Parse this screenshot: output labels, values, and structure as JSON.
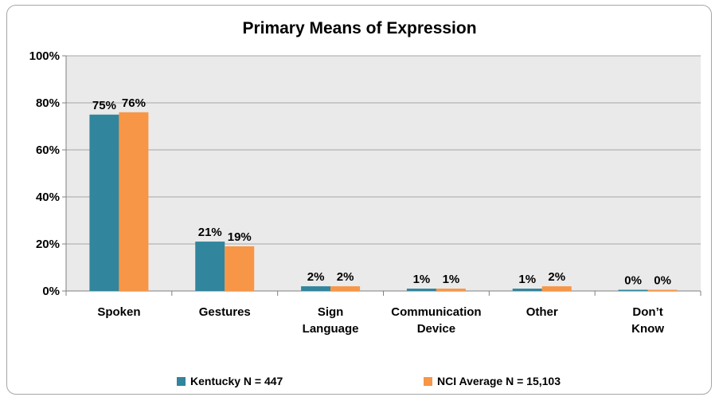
{
  "chart_data": {
    "type": "bar",
    "title": "Primary Means of Expression",
    "categories": [
      [
        "Spoken"
      ],
      [
        "Gestures"
      ],
      [
        "Sign",
        "Language"
      ],
      [
        "Communication",
        "Device"
      ],
      [
        "Other"
      ],
      [
        "Don’t",
        "Know"
      ]
    ],
    "series": [
      {
        "name": "Kentucky N = 447",
        "color": "#31859c",
        "values": [
          75,
          21,
          2,
          1,
          1,
          0
        ],
        "labels": [
          "75%",
          "21%",
          "2%",
          "1%",
          "1%",
          "0%"
        ]
      },
      {
        "name": "NCI Average N = 15,103",
        "color": "#f79646",
        "values": [
          76,
          19,
          2,
          1,
          2,
          0
        ],
        "labels": [
          "76%",
          "19%",
          "2%",
          "1%",
          "2%",
          "0%"
        ]
      }
    ],
    "yticks": [
      "0%",
      "20%",
      "40%",
      "60%",
      "80%",
      "100%"
    ],
    "ylim": [
      0,
      100
    ],
    "grid": true,
    "plot_background": "#eaeaea",
    "legend_position": "bottom"
  }
}
